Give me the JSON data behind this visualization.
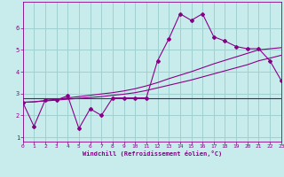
{
  "title": "",
  "xlabel": "Windchill (Refroidissement éolien,°C)",
  "ylabel": "",
  "background_color": "#c8ecec",
  "line_color": "#880088",
  "grid_color": "#a0d0d0",
  "x_values": [
    0,
    1,
    2,
    3,
    4,
    5,
    6,
    7,
    8,
    9,
    10,
    11,
    12,
    13,
    14,
    15,
    16,
    17,
    18,
    19,
    20,
    21,
    22,
    23
  ],
  "line1_y": [
    2.6,
    1.5,
    2.7,
    2.7,
    2.9,
    1.4,
    2.3,
    2.0,
    2.8,
    2.8,
    2.8,
    2.8,
    4.5,
    5.5,
    6.65,
    6.35,
    6.65,
    5.6,
    5.4,
    5.15,
    5.05,
    5.05,
    4.5,
    3.6
  ],
  "line3_y": [
    2.6,
    2.62,
    2.68,
    2.74,
    2.8,
    2.86,
    2.92,
    2.98,
    3.04,
    3.12,
    3.22,
    3.35,
    3.5,
    3.68,
    3.84,
    4.0,
    4.18,
    4.36,
    4.52,
    4.68,
    4.84,
    5.0,
    5.05,
    5.1
  ],
  "line4_y": [
    2.6,
    2.62,
    2.66,
    2.7,
    2.74,
    2.78,
    2.82,
    2.86,
    2.92,
    2.97,
    3.04,
    3.14,
    3.26,
    3.38,
    3.5,
    3.62,
    3.76,
    3.9,
    4.04,
    4.18,
    4.32,
    4.5,
    4.62,
    4.75
  ],
  "line5_y": [
    2.78,
    2.78,
    2.78,
    2.78,
    2.78,
    2.78,
    2.78,
    2.78,
    2.78,
    2.78,
    2.78,
    2.78,
    2.78,
    2.78,
    2.78,
    2.78,
    2.78,
    2.78,
    2.78,
    2.78,
    2.78,
    2.78,
    2.78,
    2.78
  ],
  "xlim": [
    0,
    23
  ],
  "ylim": [
    0.8,
    7.2
  ],
  "yticks": [
    1,
    2,
    3,
    4,
    5,
    6
  ],
  "xticks": [
    0,
    1,
    2,
    3,
    4,
    5,
    6,
    7,
    8,
    9,
    10,
    11,
    12,
    13,
    14,
    15,
    16,
    17,
    18,
    19,
    20,
    21,
    22,
    23
  ]
}
